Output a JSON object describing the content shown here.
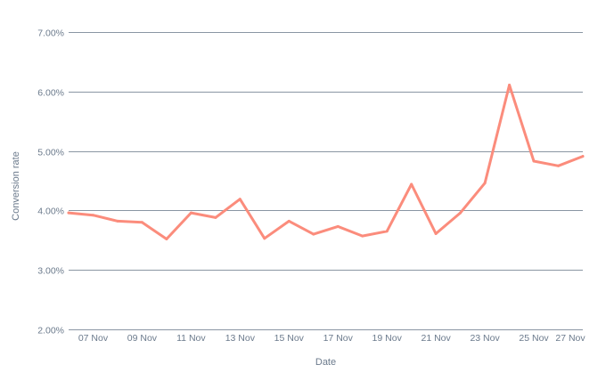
{
  "chart_data": {
    "type": "line",
    "xlabel": "Date",
    "ylabel": "Conversion rate",
    "ylim": [
      2.0,
      7.0
    ],
    "y_ticks": [
      "2.00%",
      "3.00%",
      "4.00%",
      "5.00%",
      "6.00%",
      "7.00%"
    ],
    "y_tick_values": [
      2.0,
      3.0,
      4.0,
      5.0,
      6.0,
      7.0
    ],
    "x_tick_labels": [
      "07 Nov",
      "09 Nov",
      "11 Nov",
      "13 Nov",
      "15 Nov",
      "17 Nov",
      "19 Nov",
      "21 Nov",
      "23 Nov",
      "25 Nov",
      "27 Nov"
    ],
    "x_tick_dates": [
      "2023-11-07",
      "2023-11-09",
      "2023-11-11",
      "2023-11-13",
      "2023-11-15",
      "2023-11-17",
      "2023-11-19",
      "2023-11-21",
      "2023-11-23",
      "2023-11-25",
      "2023-11-27"
    ],
    "grid": true,
    "legend": "none",
    "series": [
      {
        "color": "#fb8c7c",
        "x": [
          "2023-11-06",
          "2023-11-07",
          "2023-11-08",
          "2023-11-09",
          "2023-11-10",
          "2023-11-11",
          "2023-11-12",
          "2023-11-13",
          "2023-11-14",
          "2023-11-15",
          "2023-11-16",
          "2023-11-17",
          "2023-11-18",
          "2023-11-19",
          "2023-11-20",
          "2023-11-21",
          "2023-11-22",
          "2023-11-23",
          "2023-11-24",
          "2023-11-25",
          "2023-11-26",
          "2023-11-27"
        ],
        "values": [
          3.96,
          3.92,
          3.82,
          3.8,
          3.52,
          3.96,
          3.88,
          4.19,
          3.53,
          3.82,
          3.6,
          3.73,
          3.57,
          3.65,
          4.44,
          3.61,
          3.96,
          4.46,
          6.11,
          4.83,
          4.75,
          4.91
        ]
      }
    ]
  }
}
